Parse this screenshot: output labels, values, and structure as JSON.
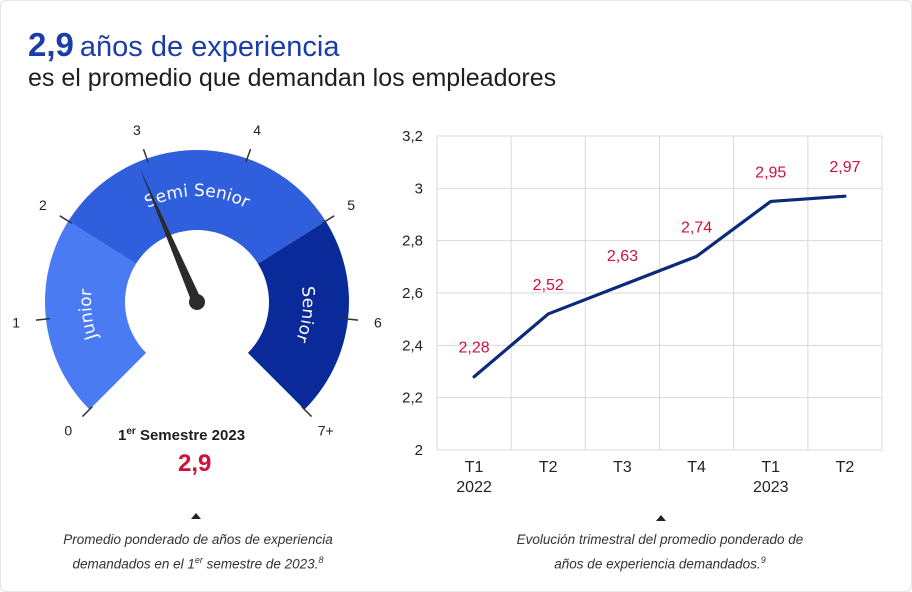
{
  "header": {
    "value": "2,9",
    "title_rest": "años de experiencia",
    "subtitle": "es el promedio que demandan los empleadores"
  },
  "gauge": {
    "scale_labels": [
      "0",
      "1",
      "2",
      "3",
      "4",
      "5",
      "6",
      "7+"
    ],
    "bands": [
      {
        "label": "Junior",
        "from": 0,
        "to": 2,
        "color": "#4a7bf2"
      },
      {
        "label": "Semi Senior",
        "from": 2,
        "to": 5,
        "color": "#2f5fdd"
      },
      {
        "label": "Senior",
        "from": 5,
        "to": 7,
        "color": "#0a2a9a"
      }
    ],
    "needle_value": 2.9,
    "period_sup": "er",
    "period_prefix": "1",
    "period_rest": " Semestre 2023",
    "value_text": "2,9",
    "caption_line1": "Promedio ponderado de años de experiencia",
    "caption_line2_pre": "demandados en el 1",
    "caption_line2_sup": "er",
    "caption_line2_post": " semestre de 2023.",
    "caption_ref": "8"
  },
  "chart_data": {
    "type": "line",
    "x": [
      "T1 2022",
      "T2",
      "T3",
      "T4",
      "T1 2023",
      "T2"
    ],
    "x_tick_lines": [
      [
        "T1",
        "2022"
      ],
      [
        "T2"
      ],
      [
        "T3"
      ],
      [
        "T4"
      ],
      [
        "T1",
        "2023"
      ],
      [
        "T2"
      ]
    ],
    "values": [
      2.28,
      2.52,
      2.63,
      2.74,
      2.95,
      2.97
    ],
    "data_labels": [
      "2,28",
      "2,52",
      "2,63",
      "2,74",
      "2,95",
      "2,97"
    ],
    "y_ticks": [
      2,
      2.2,
      2.4,
      2.6,
      2.8,
      3,
      3.2
    ],
    "y_tick_labels": [
      "2",
      "2,2",
      "2,4",
      "2,6",
      "2,8",
      "3",
      "3,2"
    ],
    "ylim": [
      2,
      3.2
    ],
    "grid": true,
    "line_color": "#0a2a7a",
    "label_color": "#d0103a",
    "title": "",
    "xlabel": "",
    "ylabel": "",
    "caption_line1": "Evolución trimestral del promedio ponderado de",
    "caption_line2": "años de experiencia demandados.",
    "caption_ref": "9"
  }
}
